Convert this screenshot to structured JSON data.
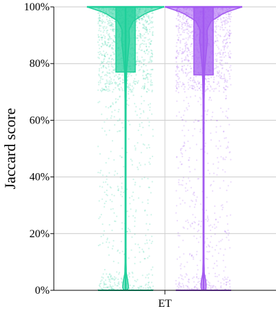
{
  "chart_data": {
    "type": "violin",
    "title": "",
    "xlabel": "",
    "ylabel": "Jaccard score",
    "ylim": [
      0,
      100
    ],
    "y_ticks": [
      "0%",
      "20%",
      "40%",
      "60%",
      "80%",
      "100%"
    ],
    "y_tick_values": [
      0,
      20,
      40,
      60,
      80,
      100
    ],
    "grid": true,
    "categories": [
      "ET"
    ],
    "legend": "none",
    "series": [
      {
        "color": "#1fcf9a",
        "q1": 77,
        "median": 100,
        "q3": 100,
        "whisker_low": 0,
        "whisker_high": 100,
        "points_note_hidden": true,
        "density_profile": [
          [
            0,
            0.04
          ],
          [
            1,
            0.08
          ],
          [
            3,
            0.06
          ],
          [
            6,
            0.02
          ],
          [
            10,
            0.012
          ],
          [
            20,
            0.01
          ],
          [
            40,
            0.01
          ],
          [
            60,
            0.012
          ],
          [
            70,
            0.016
          ],
          [
            78,
            0.03
          ],
          [
            84,
            0.07
          ],
          [
            88,
            0.1
          ],
          [
            92,
            0.09
          ],
          [
            95,
            0.2
          ],
          [
            98,
            0.55
          ],
          [
            100,
            1.0
          ]
        ]
      },
      {
        "color": "#a259f0",
        "q1": 76,
        "median": 100,
        "q3": 100,
        "whisker_low": 0,
        "whisker_high": 100,
        "density_profile": [
          [
            0,
            0.04
          ],
          [
            1,
            0.07
          ],
          [
            3,
            0.06
          ],
          [
            6,
            0.02
          ],
          [
            10,
            0.012
          ],
          [
            20,
            0.01
          ],
          [
            40,
            0.01
          ],
          [
            60,
            0.012
          ],
          [
            70,
            0.016
          ],
          [
            78,
            0.03
          ],
          [
            84,
            0.07
          ],
          [
            88,
            0.1
          ],
          [
            92,
            0.09
          ],
          [
            95,
            0.2
          ],
          [
            98,
            0.55
          ],
          [
            100,
            1.0
          ]
        ]
      }
    ]
  }
}
